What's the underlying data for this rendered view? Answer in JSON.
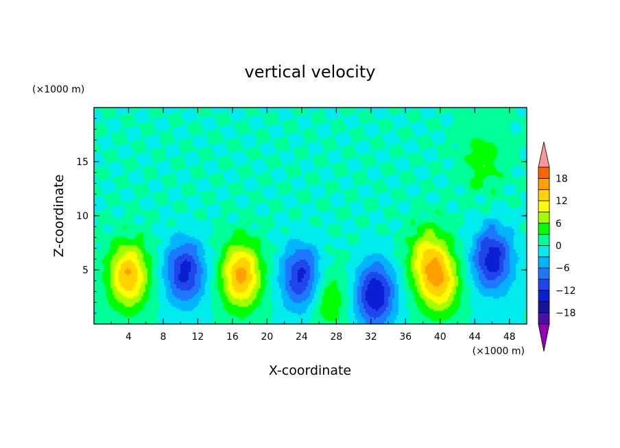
{
  "chart_data": {
    "type": "heatmap",
    "title": "vertical velocity",
    "xlabel": "X-coordinate",
    "ylabel": "Z-coordinate",
    "x_units": "(×1000 m)",
    "y_units": "(×1000 m)",
    "xlim": [
      0,
      50
    ],
    "ylim": [
      0,
      20
    ],
    "x_ticks": [
      4,
      8,
      12,
      16,
      20,
      24,
      28,
      32,
      36,
      40,
      44,
      48
    ],
    "x_tick_labels": [
      "4",
      "8",
      "12",
      "16",
      "20",
      "24",
      "28",
      "32",
      "36",
      "40",
      "44",
      "48"
    ],
    "y_ticks": [
      5,
      10,
      15
    ],
    "y_tick_labels": [
      "5",
      "10",
      "15"
    ],
    "colorbar": {
      "levels": [
        -21,
        -18,
        -15,
        -12,
        -9,
        -6,
        -3,
        0,
        3,
        6,
        9,
        12,
        15,
        18,
        21
      ],
      "tick_values": [
        -18,
        -12,
        -6,
        0,
        6,
        12,
        18
      ],
      "tick_labels": [
        "−18",
        "−12",
        "−6",
        "0",
        "6",
        "12",
        "18"
      ],
      "colors": [
        "#9400b4",
        "#4b0faa",
        "#1414a0",
        "#0a1ed2",
        "#1e46eb",
        "#1e78ff",
        "#00b4ff",
        "#00ebeb",
        "#00ff96",
        "#00ff00",
        "#a0ff00",
        "#ffff00",
        "#ffd200",
        "#ffa000",
        "#ff6400",
        "#ff2800",
        "#ff9696"
      ],
      "extend": "both"
    },
    "features": [
      {
        "x": 4,
        "z": 4.5,
        "peak": 15
      },
      {
        "x": 10.5,
        "z": 4.8,
        "peak": -13
      },
      {
        "x": 17,
        "z": 4.5,
        "peak": 16
      },
      {
        "x": 24,
        "z": 4.3,
        "peak": -13
      },
      {
        "x": 27,
        "z": 2.4,
        "peak": 6
      },
      {
        "x": 32.5,
        "z": 2.7,
        "peak": -15
      },
      {
        "x": 38.5,
        "z": 6,
        "peak": 10
      },
      {
        "x": 40,
        "z": 3.8,
        "peak": 12
      },
      {
        "x": 46,
        "z": 6,
        "peak": -14
      },
      {
        "x": 45,
        "z": 15,
        "peak": 5
      }
    ]
  }
}
